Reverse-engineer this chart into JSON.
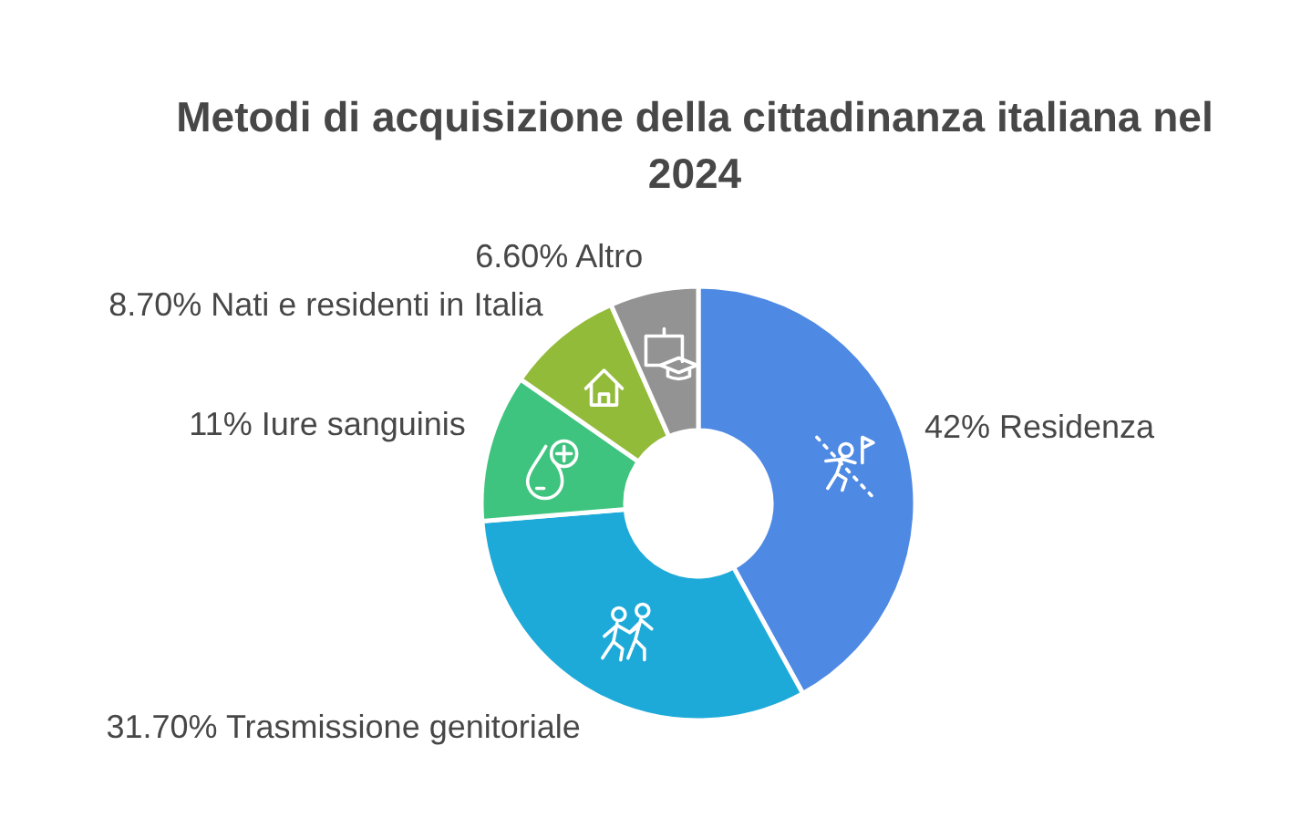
{
  "chart_data": {
    "type": "donut",
    "title": "Metodi di acquisizione della cittadinanza italiana nel 2024",
    "categories": [
      "Residenza",
      "Trasmissione genitoriale",
      "Iure sanguinis",
      "Nati e residenti in Italia",
      "Altro"
    ],
    "values": [
      42,
      31.7,
      11,
      8.7,
      6.6
    ],
    "value_labels": [
      "42%",
      "31.70%",
      "11%",
      "8.70%",
      "6.60%"
    ],
    "colors": [
      "#4e89e4",
      "#1eaad9",
      "#3ec47e",
      "#93bb3a",
      "#939393"
    ]
  }
}
